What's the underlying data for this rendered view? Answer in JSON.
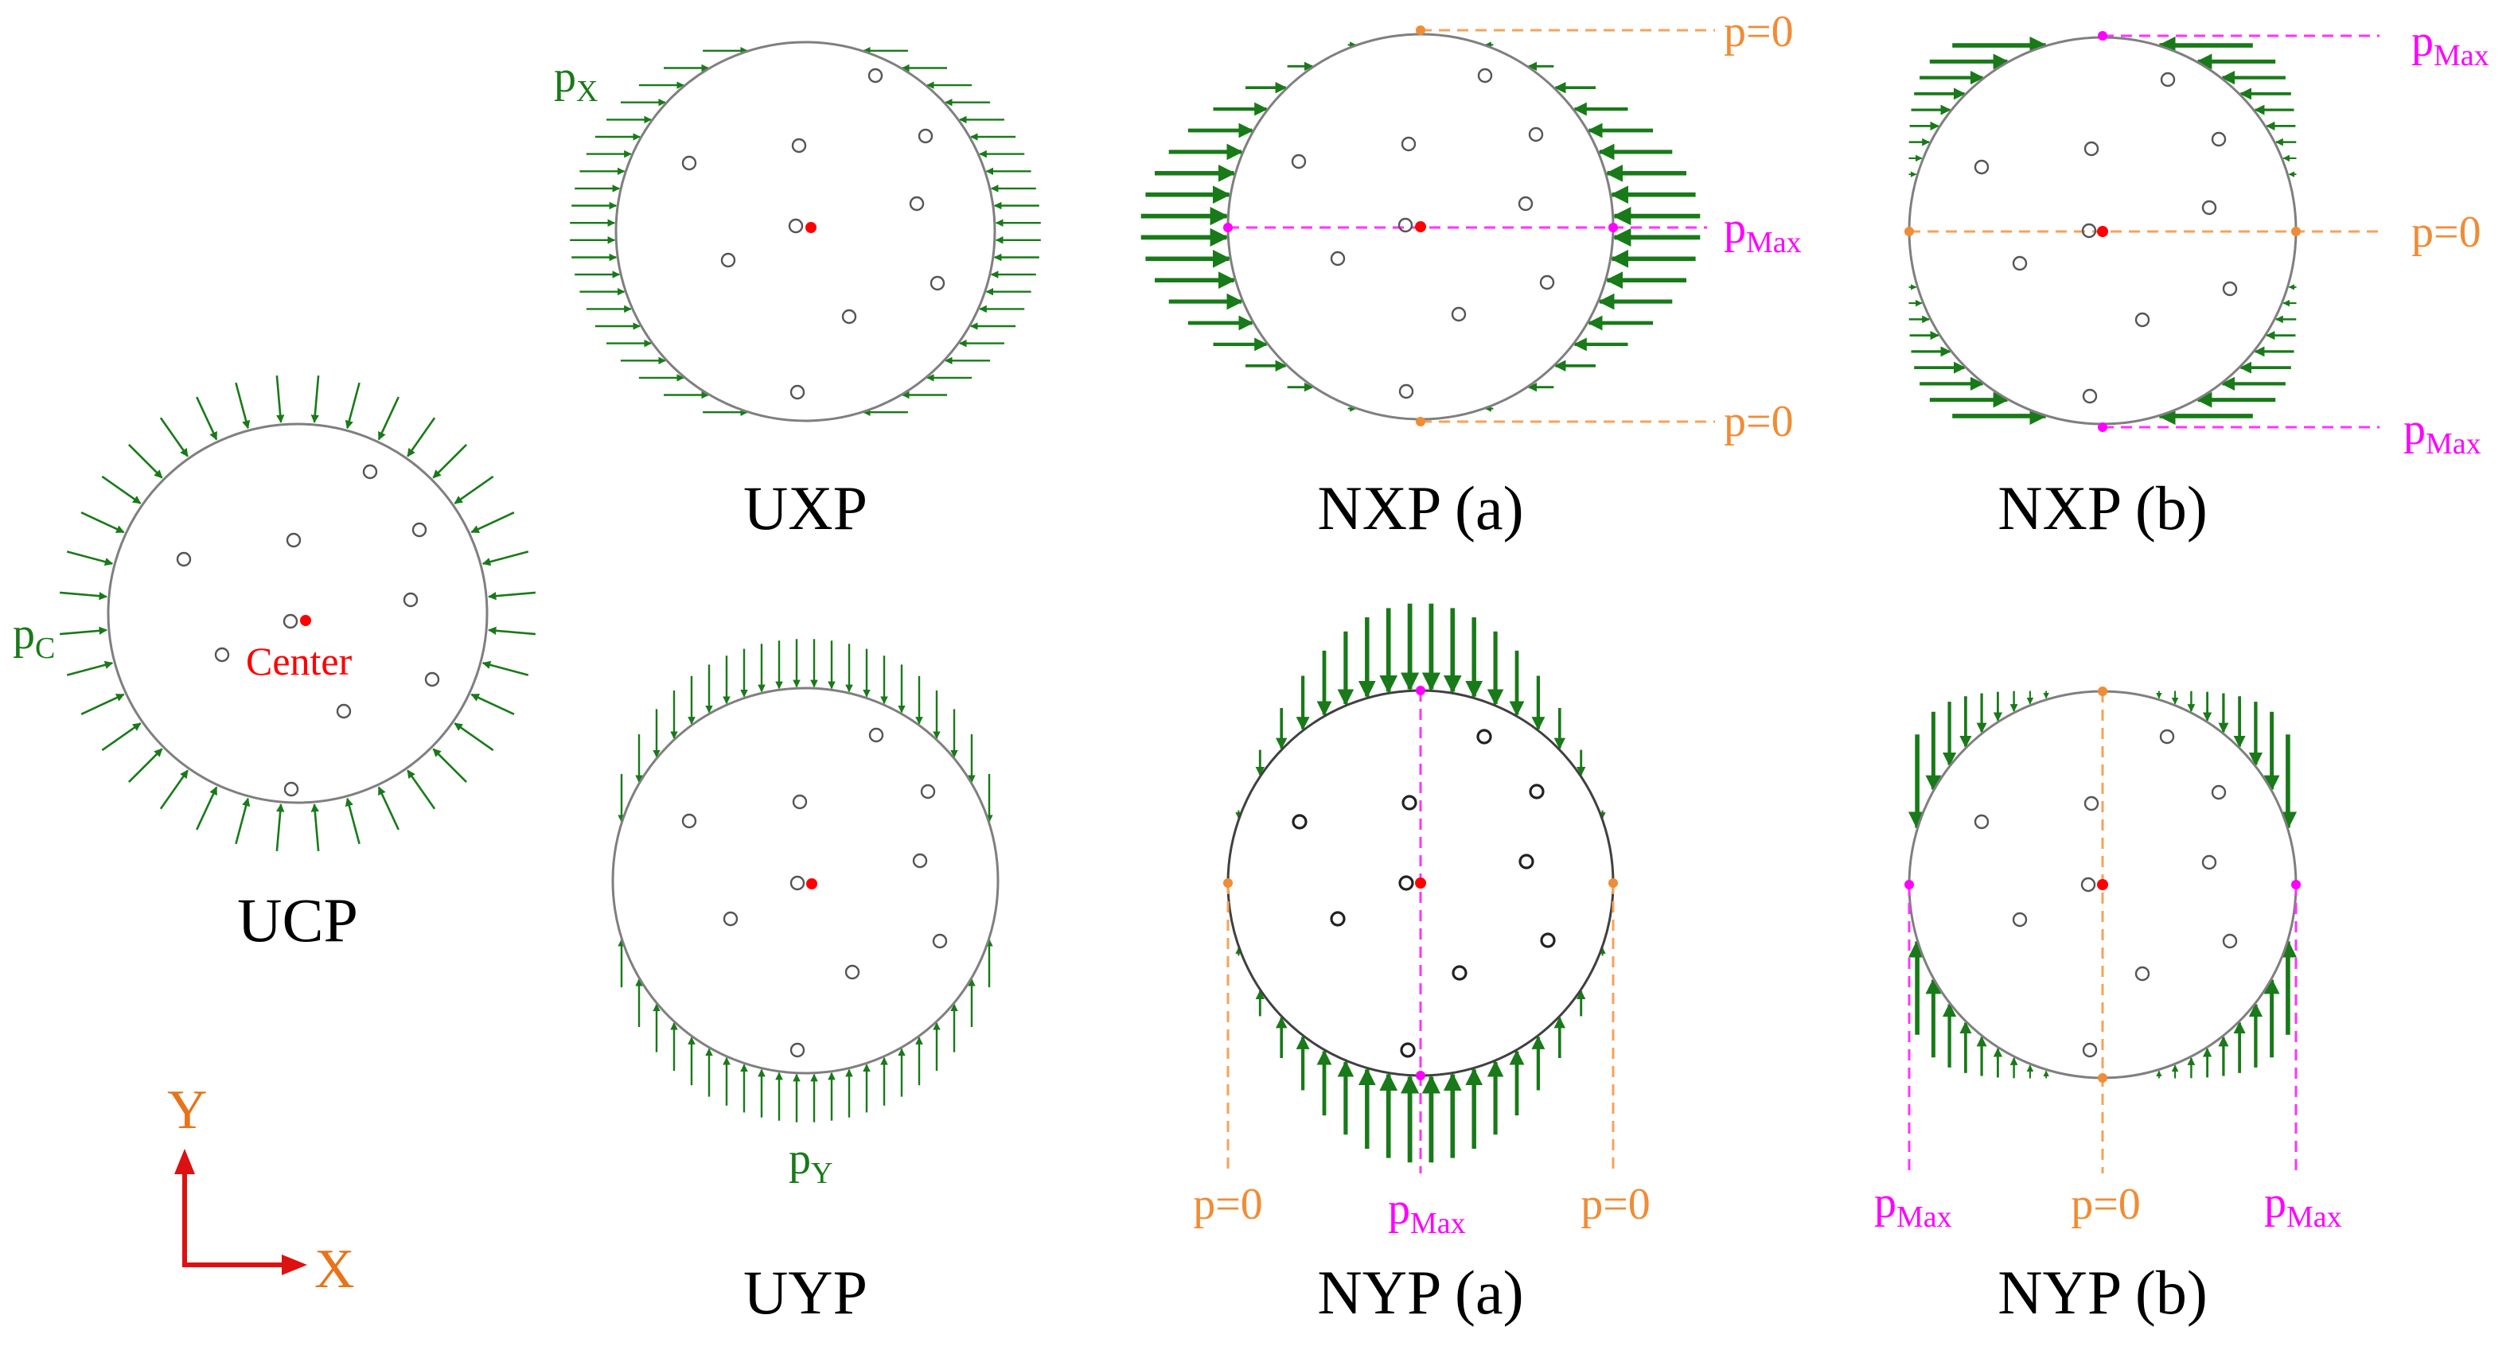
{
  "colors": {
    "arrow": "#187a18",
    "magenta": "#ff00ff",
    "orange": "#f08c35",
    "center_dot": "#ff0000",
    "axis_arrow": "#dd1111"
  },
  "panels": {
    "ucp": {
      "caption": "UCP",
      "load_label": "p",
      "load_sub": "C",
      "center_label": "Center"
    },
    "uxp": {
      "caption": "UXP",
      "load_label": "p",
      "load_sub": "X"
    },
    "uyp": {
      "caption": "UYP",
      "load_label": "p",
      "load_sub": "Y"
    },
    "nxp_a": {
      "caption": "NXP (a)",
      "max_label": "p",
      "max_sub": "Max",
      "zero_top": "p=0",
      "zero_bottom": "p=0"
    },
    "nxp_b": {
      "caption": "NXP (b)",
      "max_top": "p",
      "max_top_sub": "Max",
      "zero_label": "p=0",
      "max_bottom": "p",
      "max_bottom_sub": "Max"
    },
    "nyp_a": {
      "caption": "NYP (a)",
      "zero_left": "p=0",
      "max_label": "p",
      "max_sub": "Max",
      "zero_right": "p=0"
    },
    "nyp_b": {
      "caption": "NYP (b)",
      "max_left": "p",
      "max_left_sub": "Max",
      "zero_label": "p=0",
      "max_right": "p",
      "max_right_sub": "Max"
    }
  },
  "axes": {
    "y_label": "Y",
    "x_label": "X"
  }
}
